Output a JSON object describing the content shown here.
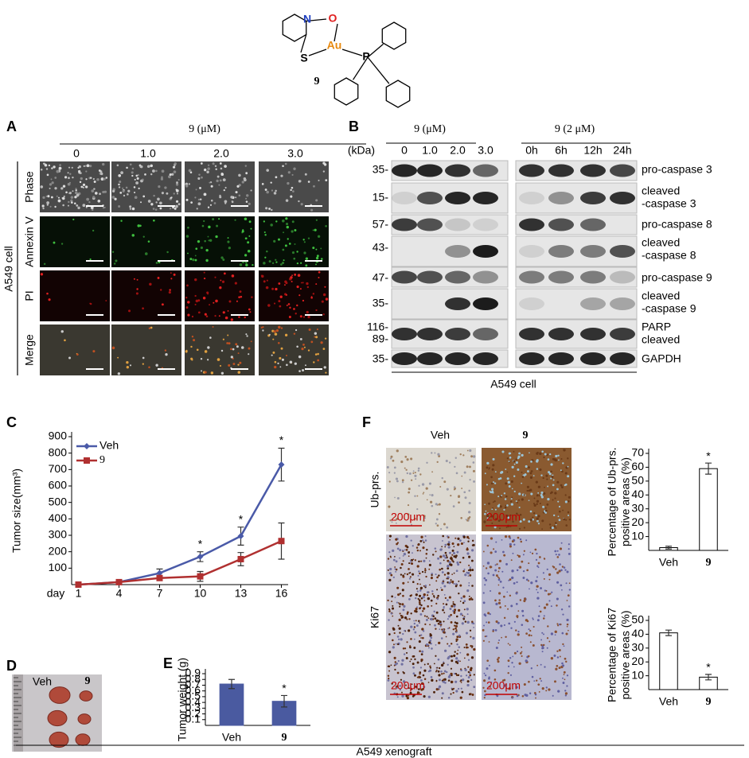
{
  "structure": {
    "atoms": [
      "N",
      "O",
      "S",
      "Au",
      "P"
    ],
    "label": "9"
  },
  "panel_a": {
    "letter": "A",
    "treatment": "9 (μM)",
    "doses": [
      "0",
      "1.0",
      "2.0",
      "3.0"
    ],
    "rows": [
      "Phase",
      "Annexin V",
      "PI",
      "Merge"
    ],
    "cell_line": "A549 cell"
  },
  "panel_b": {
    "letter": "B",
    "unit": "(kDa)",
    "dose_header": "9 (μM)",
    "doses": [
      "0",
      "1.0",
      "2.0",
      "3.0"
    ],
    "time_header": "9 (2 μM)",
    "times": [
      "0h",
      "6h",
      "12h",
      "24h"
    ],
    "markers": [
      "35-",
      "15-",
      "57-",
      "43-",
      "47-",
      "35-",
      "116-",
      "89-",
      "35-"
    ],
    "proteins": [
      [
        "pro-caspase 3"
      ],
      [
        "cleaved",
        "-caspase 3"
      ],
      [
        "pro-caspase 8"
      ],
      [
        "cleaved",
        "-caspase 8"
      ],
      [
        "pro-caspase 9"
      ],
      [
        "cleaved",
        "-caspase 9"
      ],
      [
        "PARP"
      ],
      [
        "cleaved"
      ],
      [
        "GAPDH"
      ]
    ],
    "cell_line": "A549 cell"
  },
  "panel_c": {
    "letter": "C"
  },
  "panel_d": {
    "letter": "D",
    "groups": [
      "Veh",
      "9"
    ]
  },
  "panel_e": {
    "letter": "E"
  },
  "panel_f": {
    "letter": "F",
    "groups": [
      "Veh",
      "9"
    ],
    "stains": [
      "Ub-prs.",
      "Ki67"
    ],
    "scale_bar": "200μm"
  },
  "footer": "A549 xenograft",
  "chart_data": [
    {
      "type": "line",
      "ylabel": "Tumor size(mm³)",
      "xlabel": "day",
      "x": [
        1,
        4,
        7,
        10,
        13,
        16
      ],
      "xlim": [
        0.5,
        16.5
      ],
      "xticks": [
        1,
        4,
        7,
        10,
        13,
        16
      ],
      "ylim": [
        0,
        900
      ],
      "yticks": [
        100,
        200,
        300,
        400,
        500,
        600,
        700,
        800,
        900
      ],
      "legend": "upper left",
      "series": [
        {
          "name": "Veh",
          "color": "#4a5aa8",
          "marker": "diamond",
          "values": [
            0,
            15,
            70,
            170,
            295,
            730
          ],
          "errors": [
            null,
            null,
            25,
            30,
            55,
            100
          ],
          "significance": [
            null,
            null,
            null,
            "*",
            "*",
            "*"
          ]
        },
        {
          "name": "9",
          "color": "#b03030",
          "marker": "square",
          "values": [
            0,
            15,
            40,
            50,
            155,
            265
          ],
          "errors": [
            null,
            null,
            15,
            30,
            40,
            110
          ]
        }
      ]
    },
    {
      "type": "bar",
      "ylabel": "Tumor weight (g)",
      "categories": [
        "Veh",
        "9"
      ],
      "values": [
        0.72,
        0.42
      ],
      "errors": [
        0.08,
        0.1
      ],
      "significance": [
        null,
        "*"
      ],
      "ylim": [
        0,
        0.9
      ],
      "yticks": [
        0.1,
        0.2,
        0.3,
        0.4,
        0.5,
        0.6,
        0.7,
        0.8,
        0.9
      ],
      "color": "#4a5aa0",
      "edgecolor": "#4a5aa0"
    },
    {
      "type": "bar",
      "ylabel": [
        "Percentage of Ub-prs.",
        "positive areas (%)"
      ],
      "categories": [
        "Veh",
        "9"
      ],
      "values": [
        2,
        59
      ],
      "errors": [
        1,
        4
      ],
      "significance": [
        null,
        "*"
      ],
      "ylim": [
        0,
        70
      ],
      "yticks": [
        10,
        20,
        30,
        40,
        50,
        60,
        70
      ],
      "color": "#ffffff",
      "edgecolor": "#000000"
    },
    {
      "type": "bar",
      "ylabel": [
        "Percentage of Ki67",
        "positive areas (%)"
      ],
      "categories": [
        "Veh",
        "9"
      ],
      "values": [
        41,
        9
      ],
      "errors": [
        2,
        2
      ],
      "significance": [
        null,
        "*"
      ],
      "ylim": [
        0,
        50
      ],
      "yticks": [
        10,
        20,
        30,
        40,
        50
      ],
      "color": "#ffffff",
      "edgecolor": "#000000"
    }
  ]
}
